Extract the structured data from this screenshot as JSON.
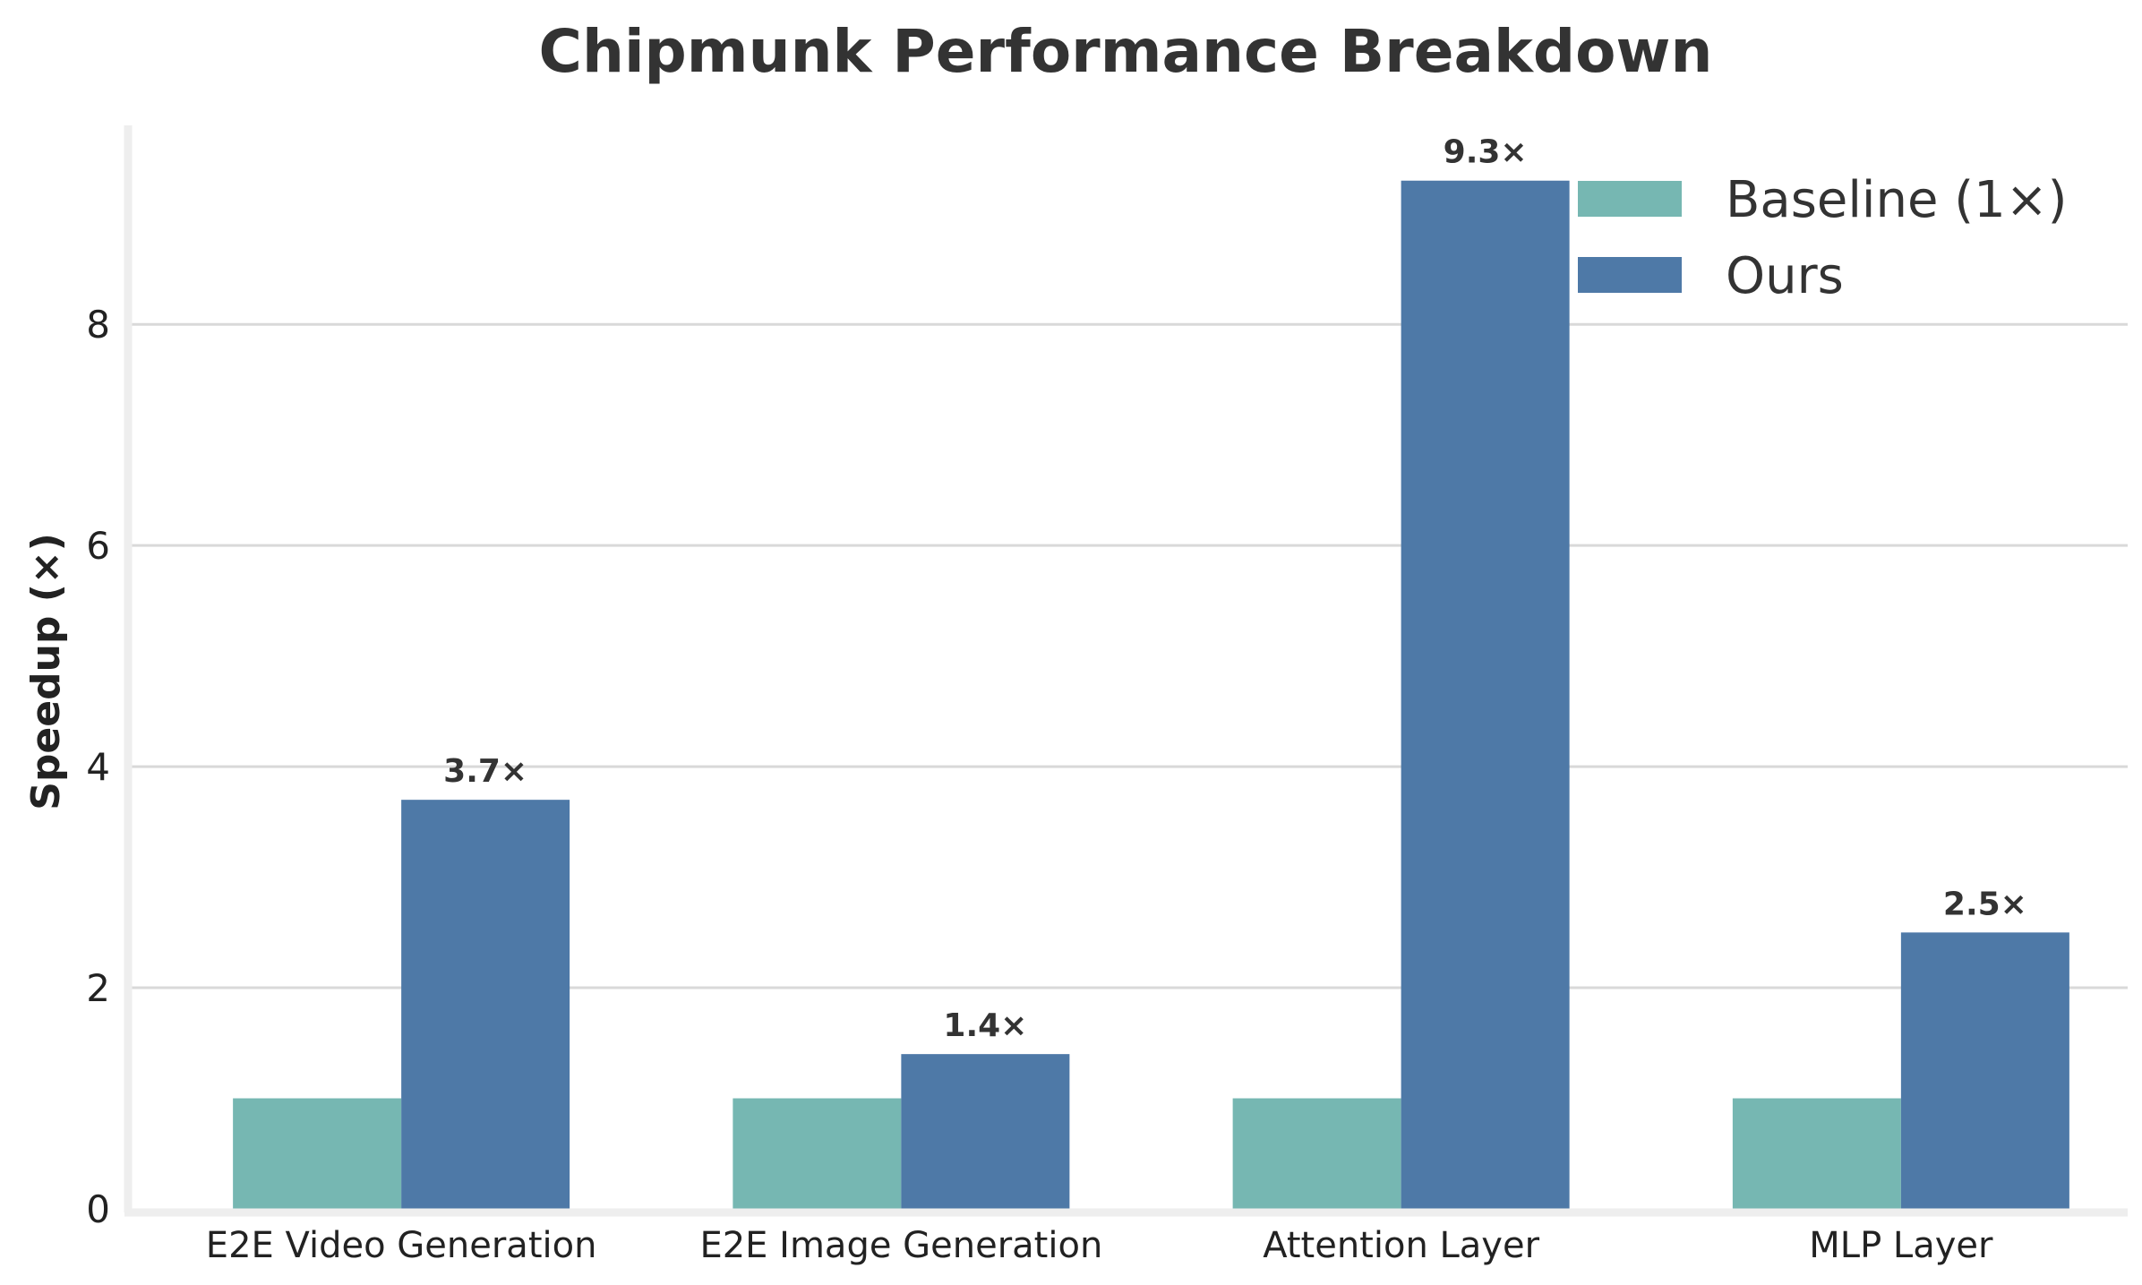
{
  "chart_data": {
    "type": "bar",
    "title": "Chipmunk Performance Breakdown",
    "xlabel": "",
    "ylabel": "Speedup (×)",
    "categories": [
      "E2E Video Generation",
      "E2E Image Generation",
      "Attention Layer",
      "MLP Layer"
    ],
    "series": [
      {
        "name": "Baseline (1×)",
        "values": [
          1,
          1,
          1,
          1
        ],
        "color": "#76b7b2",
        "labels": [
          "",
          "",
          "",
          ""
        ]
      },
      {
        "name": "Ours",
        "values": [
          3.7,
          1.4,
          9.3,
          2.5
        ],
        "color": "#4e79a7",
        "labels": [
          "3.7×",
          "1.4×",
          "9.3×",
          "2.5×"
        ]
      }
    ],
    "ylim": [
      0,
      9.8
    ],
    "yticks": [
      "0",
      "2",
      "4",
      "6",
      "8"
    ],
    "ytick_values": [
      0,
      2,
      4,
      6,
      8
    ],
    "grid": "horizontal",
    "legend": "top-right"
  }
}
